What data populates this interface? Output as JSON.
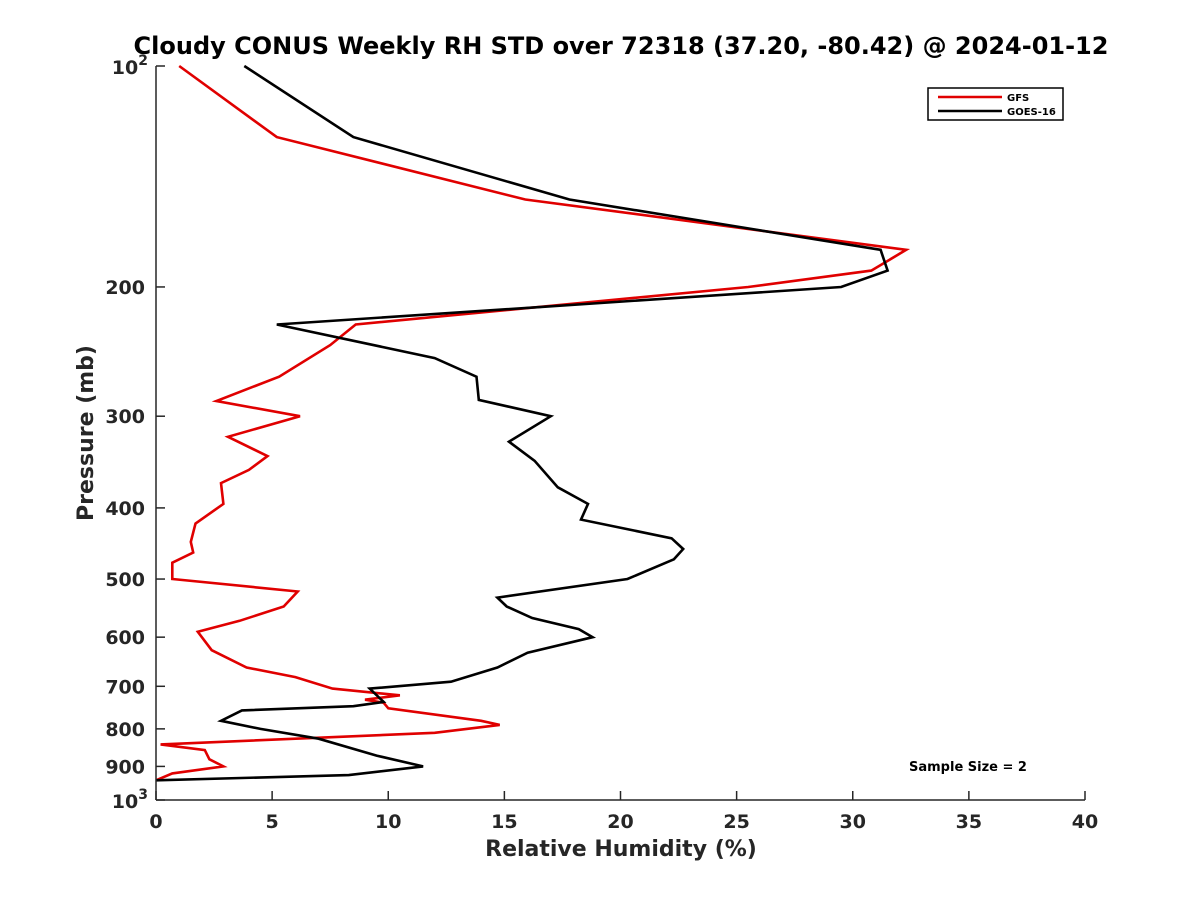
{
  "chart_data": {
    "type": "line",
    "title": "Cloudy CONUS Weekly RH STD over 72318 (37.20, -80.42) @ 2024-01-12",
    "xlabel": "Relative Humidity (%)",
    "ylabel": "Pressure (mb)",
    "xlim": [
      0,
      40
    ],
    "ylim": [
      100,
      1000
    ],
    "yscale": "log",
    "yreversed": true,
    "x_ticks": [
      0,
      5,
      10,
      15,
      20,
      25,
      30,
      35,
      40
    ],
    "y_ticks": [
      {
        "value": 100,
        "base": "10",
        "exp": "2"
      },
      {
        "value": 200,
        "label": "200"
      },
      {
        "value": 300,
        "label": "300"
      },
      {
        "value": 400,
        "label": "400"
      },
      {
        "value": 500,
        "label": "500"
      },
      {
        "value": 600,
        "label": "600"
      },
      {
        "value": 700,
        "label": "700"
      },
      {
        "value": 800,
        "label": "800"
      },
      {
        "value": 900,
        "label": "900"
      },
      {
        "value": 1000,
        "base": "10",
        "exp": "3"
      }
    ],
    "legend_position": "top-right",
    "annotation": "Sample Size = 2",
    "series": [
      {
        "name": "GFS",
        "color": "#e00000",
        "points": [
          [
            1.0,
            100
          ],
          [
            5.2,
            125
          ],
          [
            15.9,
            152
          ],
          [
            32.3,
            178
          ],
          [
            30.8,
            190
          ],
          [
            25.5,
            200
          ],
          [
            8.6,
            225
          ],
          [
            7.5,
            240
          ],
          [
            5.3,
            265
          ],
          [
            2.6,
            286
          ],
          [
            6.2,
            300
          ],
          [
            3.1,
            320
          ],
          [
            4.8,
            340
          ],
          [
            4.0,
            355
          ],
          [
            2.8,
            370
          ],
          [
            2.9,
            395
          ],
          [
            1.7,
            420
          ],
          [
            1.5,
            445
          ],
          [
            1.6,
            460
          ],
          [
            0.7,
            475
          ],
          [
            0.7,
            500
          ],
          [
            6.1,
            520
          ],
          [
            5.5,
            545
          ],
          [
            3.6,
            570
          ],
          [
            1.8,
            590
          ],
          [
            2.4,
            625
          ],
          [
            3.9,
            660
          ],
          [
            6.0,
            680
          ],
          [
            7.6,
            705
          ],
          [
            10.5,
            720
          ],
          [
            9.0,
            730
          ],
          [
            9.8,
            737
          ],
          [
            10.0,
            750
          ],
          [
            14.0,
            780
          ],
          [
            14.8,
            790
          ],
          [
            12.0,
            810
          ],
          [
            0.2,
            840
          ],
          [
            2.1,
            855
          ],
          [
            2.3,
            880
          ],
          [
            2.9,
            900
          ],
          [
            0.7,
            920
          ],
          [
            0.0,
            940
          ]
        ]
      },
      {
        "name": "GOES-16",
        "color": "#000000",
        "points": [
          [
            3.8,
            100
          ],
          [
            8.5,
            125
          ],
          [
            17.8,
            152
          ],
          [
            31.2,
            178
          ],
          [
            31.5,
            190
          ],
          [
            29.5,
            200
          ],
          [
            5.2,
            225
          ],
          [
            12.0,
            250
          ],
          [
            13.8,
            265
          ],
          [
            13.9,
            285
          ],
          [
            17.0,
            300
          ],
          [
            15.2,
            325
          ],
          [
            16.3,
            345
          ],
          [
            17.3,
            375
          ],
          [
            18.6,
            395
          ],
          [
            18.3,
            415
          ],
          [
            22.2,
            440
          ],
          [
            22.7,
            455
          ],
          [
            22.3,
            470
          ],
          [
            20.3,
            500
          ],
          [
            14.7,
            530
          ],
          [
            15.1,
            545
          ],
          [
            16.2,
            565
          ],
          [
            18.2,
            585
          ],
          [
            18.8,
            600
          ],
          [
            16.0,
            630
          ],
          [
            14.7,
            660
          ],
          [
            12.7,
            690
          ],
          [
            9.2,
            705
          ],
          [
            9.8,
            735
          ],
          [
            8.5,
            745
          ],
          [
            3.7,
            755
          ],
          [
            2.8,
            780
          ],
          [
            4.5,
            800
          ],
          [
            7.0,
            825
          ],
          [
            9.5,
            870
          ],
          [
            11.5,
            900
          ],
          [
            8.3,
            925
          ],
          [
            0.0,
            940
          ]
        ]
      }
    ]
  }
}
